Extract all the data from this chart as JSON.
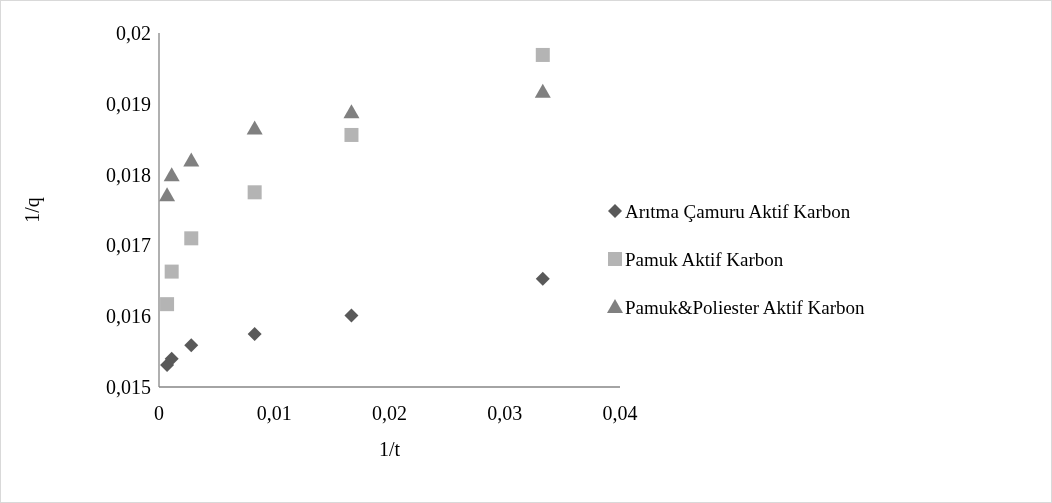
{
  "chart_data": {
    "type": "scatter",
    "xlabel": "1/t",
    "ylabel": "1/q",
    "x": [
      0.0007,
      0.0011,
      0.0028,
      0.0083,
      0.0167,
      0.0333
    ],
    "series": [
      {
        "name": "Arıtma Çamuru Aktif Karbon",
        "color": "#595959",
        "marker": "diamond",
        "values": [
          0.01531,
          0.0154,
          0.01559,
          0.01575,
          0.01601,
          0.01653
        ]
      },
      {
        "name": "Pamuk Aktif Karbon",
        "color": "#b4b4b4",
        "marker": "square",
        "values": [
          0.01617,
          0.01663,
          0.0171,
          0.01775,
          0.01856,
          0.01969
        ]
      },
      {
        "name": "Pamuk&Poliester Aktif Karbon",
        "color": "#808080",
        "marker": "triangle",
        "values": [
          0.01771,
          0.01799,
          0.0182,
          0.01865,
          0.01888,
          0.01917
        ]
      }
    ],
    "xlim": [
      0,
      0.04
    ],
    "xticks": [
      {
        "value": 0,
        "label": "0"
      },
      {
        "value": 0.01,
        "label": "0,01"
      },
      {
        "value": 0.02,
        "label": "0,02"
      },
      {
        "value": 0.03,
        "label": "0,03"
      },
      {
        "value": 0.04,
        "label": "0,04"
      }
    ],
    "ylim": [
      0.015,
      0.02
    ],
    "yticks": [
      {
        "value": 0.015,
        "label": "0,015"
      },
      {
        "value": 0.016,
        "label": "0,016"
      },
      {
        "value": 0.017,
        "label": "0,017"
      },
      {
        "value": 0.018,
        "label": "0,018"
      },
      {
        "value": 0.019,
        "label": "0,019"
      },
      {
        "value": 0.02,
        "label": "0,02"
      }
    ],
    "grid": false,
    "legend": "right"
  }
}
